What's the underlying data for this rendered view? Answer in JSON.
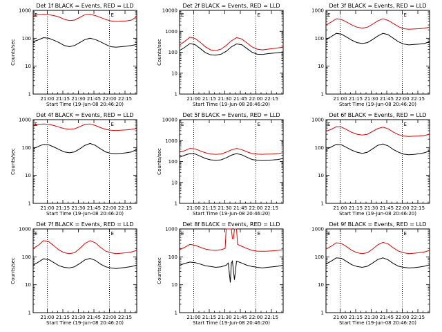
{
  "figure": {
    "x_tick_labels": [
      "21:00",
      "21:15",
      "21:30",
      "21:45",
      "22:00",
      "22:15"
    ],
    "y_tick_labels": [
      "1",
      "10",
      "100",
      "1000"
    ],
    "y_top_tick_label": "10000",
    "ylabel": "Counts/sec",
    "xlabel": "Start Time (19-Jun-08 20:46:20)",
    "marker_label": "E",
    "colors": {
      "events": "#000000",
      "lld": "#e00000",
      "frame": "#000000"
    }
  },
  "chart_data": [
    {
      "type": "line",
      "title": "Det 1f BLACK = Events, RED = LLD",
      "x_unit": "minutes since 20:46:20",
      "x_range": [
        0,
        100
      ],
      "yscale": "log",
      "ylim": [
        1,
        1000
      ],
      "marker_times": [
        "21:00",
        "22:00"
      ],
      "series": [
        {
          "name": "Events",
          "color": "#000000",
          "x": [
            0,
            5,
            10,
            15,
            20,
            25,
            30,
            35,
            40,
            45,
            50,
            55,
            60,
            65,
            70,
            75,
            80,
            85,
            90,
            95,
            100
          ],
          "y": [
            75,
            88,
            105,
            100,
            85,
            70,
            55,
            50,
            55,
            70,
            90,
            100,
            90,
            75,
            60,
            50,
            48,
            50,
            52,
            55,
            60
          ]
        },
        {
          "name": "LLD",
          "color": "#e00000",
          "x": [
            0,
            5,
            10,
            15,
            20,
            25,
            30,
            35,
            40,
            45,
            50,
            55,
            60,
            65,
            70,
            75,
            80,
            85,
            90,
            95,
            100
          ],
          "y": [
            620,
            700,
            720,
            700,
            650,
            580,
            480,
            430,
            450,
            560,
            700,
            720,
            650,
            560,
            470,
            420,
            400,
            410,
            420,
            450,
            600
          ]
        }
      ]
    },
    {
      "type": "line",
      "title": "Det 2f BLACK = Events, RED = LLD",
      "x_unit": "minutes since 20:46:20",
      "x_range": [
        0,
        100
      ],
      "yscale": "log",
      "ylim": [
        1,
        10000
      ],
      "marker_times": [
        "21:00",
        "22:00"
      ],
      "series": [
        {
          "name": "Events",
          "color": "#000000",
          "x": [
            0,
            5,
            10,
            15,
            20,
            25,
            30,
            35,
            40,
            45,
            50,
            55,
            60,
            65,
            70,
            75,
            80,
            85,
            90,
            95,
            100
          ],
          "y": [
            120,
            170,
            260,
            230,
            150,
            95,
            75,
            72,
            80,
            110,
            180,
            250,
            230,
            150,
            100,
            80,
            78,
            85,
            90,
            95,
            105
          ]
        },
        {
          "name": "LLD",
          "color": "#e00000",
          "x": [
            0,
            5,
            10,
            15,
            20,
            25,
            30,
            35,
            40,
            45,
            50,
            55,
            60,
            65,
            70,
            75,
            80,
            85,
            90,
            95,
            100
          ],
          "y": [
            220,
            330,
            520,
            450,
            300,
            180,
            130,
            120,
            140,
            210,
            350,
            500,
            430,
            280,
            180,
            140,
            130,
            140,
            150,
            160,
            175
          ]
        }
      ]
    },
    {
      "type": "line",
      "title": "Det 3f BLACK = Events, RED = LLD",
      "x_unit": "minutes since 20:46:20",
      "x_range": [
        0,
        100
      ],
      "yscale": "log",
      "ylim": [
        1,
        1000
      ],
      "marker_times": [
        "21:00",
        "22:00"
      ],
      "series": [
        {
          "name": "Events",
          "color": "#000000",
          "x": [
            0,
            5,
            10,
            15,
            20,
            25,
            30,
            35,
            40,
            45,
            50,
            55,
            60,
            65,
            70,
            75,
            80,
            85,
            90,
            95,
            100
          ],
          "y": [
            90,
            115,
            150,
            140,
            110,
            85,
            70,
            65,
            70,
            90,
            120,
            150,
            135,
            100,
            75,
            62,
            58,
            60,
            62,
            65,
            75
          ]
        },
        {
          "name": "LLD",
          "color": "#e00000",
          "x": [
            0,
            5,
            10,
            15,
            20,
            25,
            30,
            35,
            40,
            45,
            50,
            55,
            60,
            65,
            70,
            75,
            80,
            85,
            90,
            95,
            100
          ],
          "y": [
            300,
            380,
            500,
            470,
            380,
            300,
            250,
            230,
            250,
            320,
            420,
            500,
            440,
            340,
            260,
            220,
            210,
            215,
            220,
            230,
            250
          ]
        }
      ]
    },
    {
      "type": "line",
      "title": "Det 4f BLACK = Events, RED = LLD",
      "x_unit": "minutes since 20:46:20",
      "x_range": [
        0,
        100
      ],
      "yscale": "log",
      "ylim": [
        1,
        1000
      ],
      "marker_times": [
        "21:00",
        "22:00"
      ],
      "series": [
        {
          "name": "Events",
          "color": "#000000",
          "x": [
            0,
            5,
            10,
            15,
            20,
            25,
            30,
            35,
            40,
            45,
            50,
            55,
            60,
            65,
            70,
            75,
            80,
            85,
            90,
            95,
            100
          ],
          "y": [
            90,
            110,
            130,
            125,
            105,
            85,
            70,
            65,
            70,
            90,
            120,
            140,
            120,
            90,
            70,
            62,
            60,
            62,
            65,
            70,
            85
          ]
        },
        {
          "name": "LLD",
          "color": "#e00000",
          "x": [
            0,
            5,
            10,
            15,
            20,
            25,
            30,
            35,
            40,
            45,
            50,
            55,
            60,
            65,
            70,
            75,
            80,
            85,
            90,
            95,
            100
          ],
          "y": [
            620,
            680,
            700,
            680,
            620,
            540,
            480,
            450,
            470,
            560,
            680,
            700,
            620,
            520,
            450,
            420,
            410,
            420,
            430,
            450,
            480
          ]
        }
      ]
    },
    {
      "type": "line",
      "title": "Det 5f BLACK = Events, RED = LLD",
      "x_unit": "minutes since 20:46:20",
      "x_range": [
        0,
        100
      ],
      "yscale": "log",
      "ylim": [
        1,
        10000
      ],
      "marker_times": [
        "21:00",
        "22:00"
      ],
      "series": [
        {
          "name": "Events",
          "color": "#000000",
          "x": [
            0,
            5,
            10,
            15,
            20,
            25,
            30,
            35,
            40,
            45,
            50,
            55,
            60,
            65,
            70,
            75,
            80,
            85,
            90,
            95,
            100
          ],
          "y": [
            160,
            200,
            240,
            230,
            180,
            140,
            120,
            115,
            120,
            150,
            200,
            240,
            210,
            160,
            125,
            115,
            112,
            115,
            118,
            125,
            140
          ]
        },
        {
          "name": "LLD",
          "color": "#e00000",
          "x": [
            0,
            5,
            10,
            15,
            20,
            25,
            30,
            35,
            40,
            45,
            50,
            55,
            60,
            65,
            70,
            75,
            80,
            85,
            90,
            95,
            100
          ],
          "y": [
            280,
            330,
            420,
            400,
            320,
            260,
            230,
            220,
            230,
            280,
            360,
            420,
            370,
            290,
            240,
            225,
            220,
            225,
            230,
            240,
            260
          ]
        }
      ]
    },
    {
      "type": "line",
      "title": "Det 6f BLACK = Events, RED = LLD",
      "x_unit": "minutes since 20:46:20",
      "x_range": [
        0,
        100
      ],
      "yscale": "log",
      "ylim": [
        1,
        1000
      ],
      "marker_times": [
        "21:00",
        "22:00"
      ],
      "series": [
        {
          "name": "Events",
          "color": "#000000",
          "x": [
            0,
            5,
            10,
            15,
            20,
            25,
            30,
            35,
            40,
            45,
            50,
            55,
            60,
            65,
            70,
            75,
            80,
            85,
            90,
            95,
            100
          ],
          "y": [
            85,
            105,
            130,
            125,
            100,
            80,
            68,
            62,
            68,
            90,
            120,
            135,
            115,
            85,
            68,
            58,
            55,
            57,
            60,
            65,
            75
          ]
        },
        {
          "name": "LLD",
          "color": "#e00000",
          "x": [
            0,
            5,
            10,
            15,
            20,
            25,
            30,
            35,
            40,
            45,
            50,
            55,
            60,
            65,
            70,
            75,
            80,
            85,
            90,
            95,
            100
          ],
          "y": [
            380,
            450,
            560,
            540,
            440,
            350,
            300,
            280,
            300,
            380,
            480,
            540,
            470,
            360,
            290,
            260,
            250,
            255,
            260,
            270,
            300
          ]
        }
      ]
    },
    {
      "type": "line",
      "title": "Det 7f BLACK = Events, RED = LLD",
      "x_unit": "minutes since 20:46:20",
      "x_range": [
        0,
        100
      ],
      "yscale": "log",
      "ylim": [
        1,
        1000
      ],
      "marker_times": [
        "21:00",
        "22:00"
      ],
      "series": [
        {
          "name": "Events",
          "color": "#000000",
          "x": [
            0,
            5,
            10,
            15,
            20,
            25,
            30,
            35,
            40,
            45,
            50,
            55,
            60,
            65,
            70,
            75,
            80,
            85,
            90,
            95,
            100
          ],
          "y": [
            50,
            65,
            85,
            80,
            62,
            48,
            42,
            40,
            44,
            58,
            78,
            88,
            75,
            55,
            44,
            40,
            38,
            40,
            42,
            45,
            50
          ]
        },
        {
          "name": "LLD",
          "color": "#e00000",
          "x": [
            0,
            5,
            10,
            15,
            20,
            25,
            30,
            35,
            40,
            45,
            50,
            55,
            60,
            65,
            70,
            75,
            80,
            85,
            90,
            95,
            100
          ],
          "y": [
            200,
            260,
            380,
            350,
            250,
            175,
            140,
            130,
            140,
            200,
            300,
            380,
            320,
            220,
            160,
            140,
            130,
            135,
            140,
            150,
            170
          ]
        }
      ]
    },
    {
      "type": "line",
      "title": "Det 8f BLACK = Events, RED = LLD",
      "x_unit": "minutes since 20:46:20",
      "x_range": [
        0,
        100
      ],
      "yscale": "log",
      "ylim": [
        1,
        1000
      ],
      "marker_times": [
        "21:00",
        "22:00"
      ],
      "series": [
        {
          "name": "Events",
          "color": "#000000",
          "x": [
            0,
            5,
            10,
            15,
            20,
            25,
            30,
            35,
            40,
            45,
            47,
            49,
            50,
            51,
            53,
            55,
            60,
            65,
            70,
            75,
            80,
            85,
            90,
            95,
            100
          ],
          "y": [
            50,
            58,
            65,
            62,
            55,
            48,
            45,
            42,
            44,
            50,
            60,
            12,
            60,
            70,
            15,
            70,
            60,
            50,
            45,
            42,
            40,
            42,
            44,
            46,
            50
          ]
        },
        {
          "name": "LLD",
          "color": "#e00000",
          "x": [
            0,
            5,
            10,
            15,
            20,
            25,
            30,
            35,
            40,
            44,
            45,
            46,
            50,
            51,
            52,
            53,
            55,
            56,
            60,
            65,
            70,
            75,
            80,
            85,
            90,
            95,
            100
          ],
          "y": [
            180,
            220,
            280,
            260,
            220,
            190,
            175,
            170,
            180,
            200,
            1000,
            1000,
            1000,
            450,
            450,
            1000,
            1000,
            280,
            240,
            200,
            170,
            160,
            158,
            160,
            165,
            170,
            180
          ]
        }
      ]
    },
    {
      "type": "line",
      "title": "Det 9f BLACK = Events, RED = LLD",
      "x_unit": "minutes since 20:46:20",
      "x_range": [
        0,
        100
      ],
      "yscale": "log",
      "ylim": [
        1,
        1000
      ],
      "marker_times": [
        "21:00",
        "22:00"
      ],
      "series": [
        {
          "name": "Events",
          "color": "#000000",
          "x": [
            0,
            5,
            10,
            15,
            20,
            25,
            30,
            35,
            40,
            45,
            50,
            55,
            60,
            65,
            70,
            75,
            80,
            85,
            90,
            95,
            100
          ],
          "y": [
            55,
            70,
            92,
            88,
            68,
            52,
            45,
            42,
            46,
            60,
            80,
            92,
            78,
            58,
            46,
            42,
            40,
            41,
            43,
            46,
            52
          ]
        },
        {
          "name": "LLD",
          "color": "#e00000",
          "x": [
            0,
            5,
            10,
            15,
            20,
            25,
            30,
            35,
            40,
            45,
            50,
            55,
            60,
            65,
            70,
            75,
            80,
            85,
            90,
            95,
            100
          ],
          "y": [
            190,
            240,
            320,
            300,
            230,
            170,
            140,
            130,
            140,
            190,
            270,
            330,
            290,
            210,
            160,
            140,
            130,
            135,
            140,
            150,
            170
          ]
        }
      ]
    }
  ]
}
